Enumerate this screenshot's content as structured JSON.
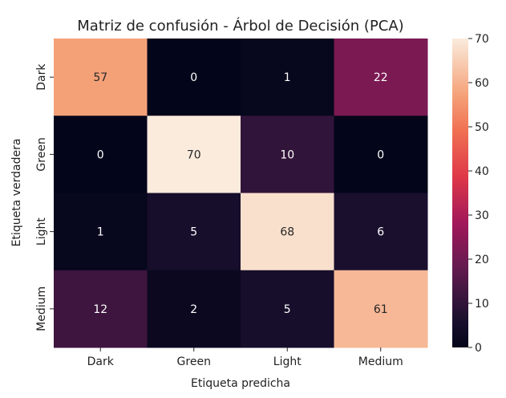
{
  "chart_data": {
    "type": "heatmap",
    "title": "Matriz de confusión - Árbol de Decisión (PCA)",
    "xlabel": "Etiqueta predicha",
    "ylabel": "Etiqueta verdadera",
    "x_categories": [
      "Dark",
      "Green",
      "Light",
      "Medium"
    ],
    "y_categories": [
      "Dark",
      "Green",
      "Light",
      "Medium"
    ],
    "values": [
      [
        57,
        0,
        1,
        22
      ],
      [
        0,
        70,
        10,
        0
      ],
      [
        1,
        5,
        68,
        6
      ],
      [
        12,
        2,
        5,
        61
      ]
    ],
    "colorbar": {
      "min": 0,
      "max": 70,
      "ticks": [
        0,
        10,
        20,
        30,
        40,
        50,
        60,
        70
      ]
    },
    "colormap": "rocket",
    "grid": false,
    "legend": "colorbar-right"
  }
}
